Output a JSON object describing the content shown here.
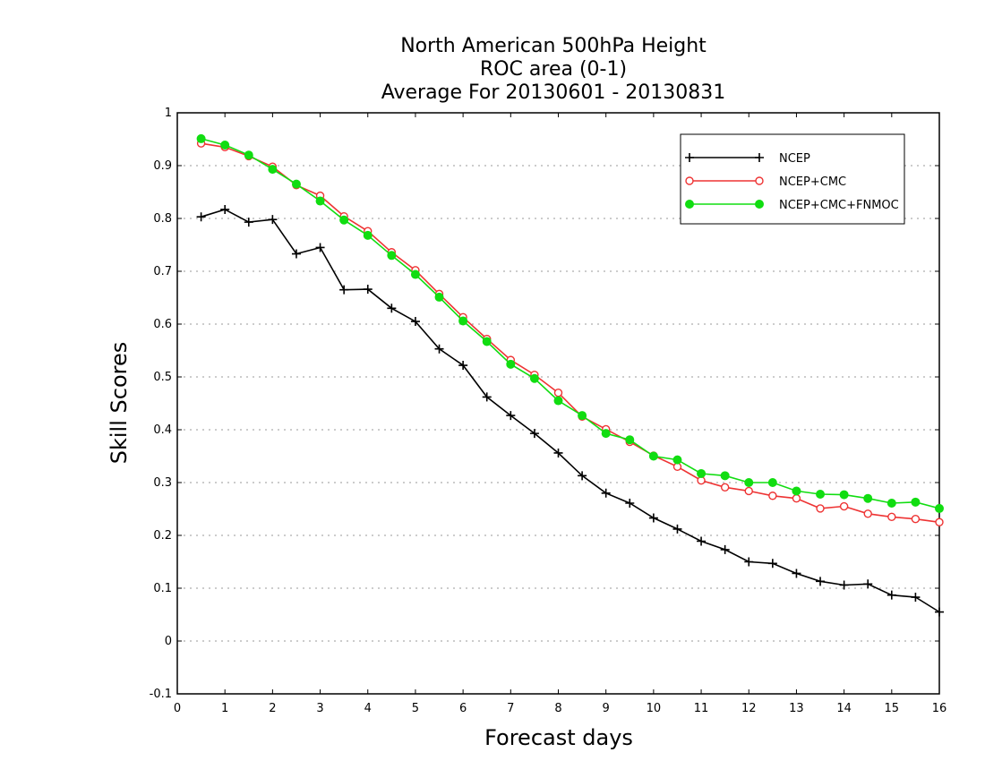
{
  "chart_data": {
    "type": "line",
    "title_lines": [
      "North American 500hPa Height",
      "ROC area (0-1)",
      "Average For 20130601 - 20130831"
    ],
    "xlabel": "Forecast days",
    "ylabel": "Skill Scores",
    "xlim": [
      0,
      16
    ],
    "ylim": [
      -0.1,
      1
    ],
    "x_ticks": [
      "0",
      "1",
      "2",
      "3",
      "4",
      "5",
      "6",
      "7",
      "8",
      "9",
      "10",
      "11",
      "12",
      "13",
      "14",
      "15",
      "16"
    ],
    "y_ticks": [
      "-0.1",
      "0",
      "0.1",
      "0.2",
      "0.3",
      "0.4",
      "0.5",
      "0.6",
      "0.7",
      "0.8",
      "0.9",
      "1"
    ],
    "grid": "horizontal-dotted",
    "legend_position": "top-right",
    "x": [
      0.5,
      1,
      1.5,
      2,
      2.5,
      3,
      3.5,
      4,
      4.5,
      5,
      5.5,
      6,
      6.5,
      7,
      7.5,
      8,
      8.5,
      9,
      9.5,
      10,
      10.5,
      11,
      11.5,
      12,
      12.5,
      13,
      13.5,
      14,
      14.5,
      15,
      15.5,
      16
    ],
    "series": [
      {
        "name": "NCEP",
        "color": "#000000",
        "marker": "plus",
        "values": [
          0.803,
          0.817,
          0.793,
          0.798,
          0.733,
          0.745,
          0.665,
          0.666,
          0.63,
          0.605,
          0.553,
          0.522,
          0.462,
          0.427,
          0.393,
          0.356,
          0.313,
          0.28,
          0.261,
          0.233,
          0.212,
          0.189,
          0.173,
          0.15,
          0.147,
          0.128,
          0.113,
          0.106,
          0.108,
          0.087,
          0.083,
          0.055
        ]
      },
      {
        "name": "NCEP+CMC",
        "color": "#ee3333",
        "marker": "open-circle",
        "values": [
          0.942,
          0.935,
          0.918,
          0.898,
          0.863,
          0.843,
          0.804,
          0.776,
          0.736,
          0.702,
          0.657,
          0.613,
          0.572,
          0.532,
          0.504,
          0.47,
          0.425,
          0.401,
          0.377,
          0.351,
          0.33,
          0.304,
          0.291,
          0.284,
          0.275,
          0.27,
          0.251,
          0.255,
          0.241,
          0.235,
          0.231,
          0.225
        ]
      },
      {
        "name": "NCEP+CMC+FNMOC",
        "color": "#11dd11",
        "marker": "filled-circle",
        "values": [
          0.951,
          0.939,
          0.92,
          0.893,
          0.865,
          0.833,
          0.797,
          0.768,
          0.73,
          0.694,
          0.651,
          0.606,
          0.567,
          0.524,
          0.497,
          0.455,
          0.427,
          0.393,
          0.381,
          0.35,
          0.343,
          0.317,
          0.313,
          0.3,
          0.3,
          0.284,
          0.278,
          0.277,
          0.27,
          0.261,
          0.263,
          0.251
        ]
      }
    ]
  }
}
